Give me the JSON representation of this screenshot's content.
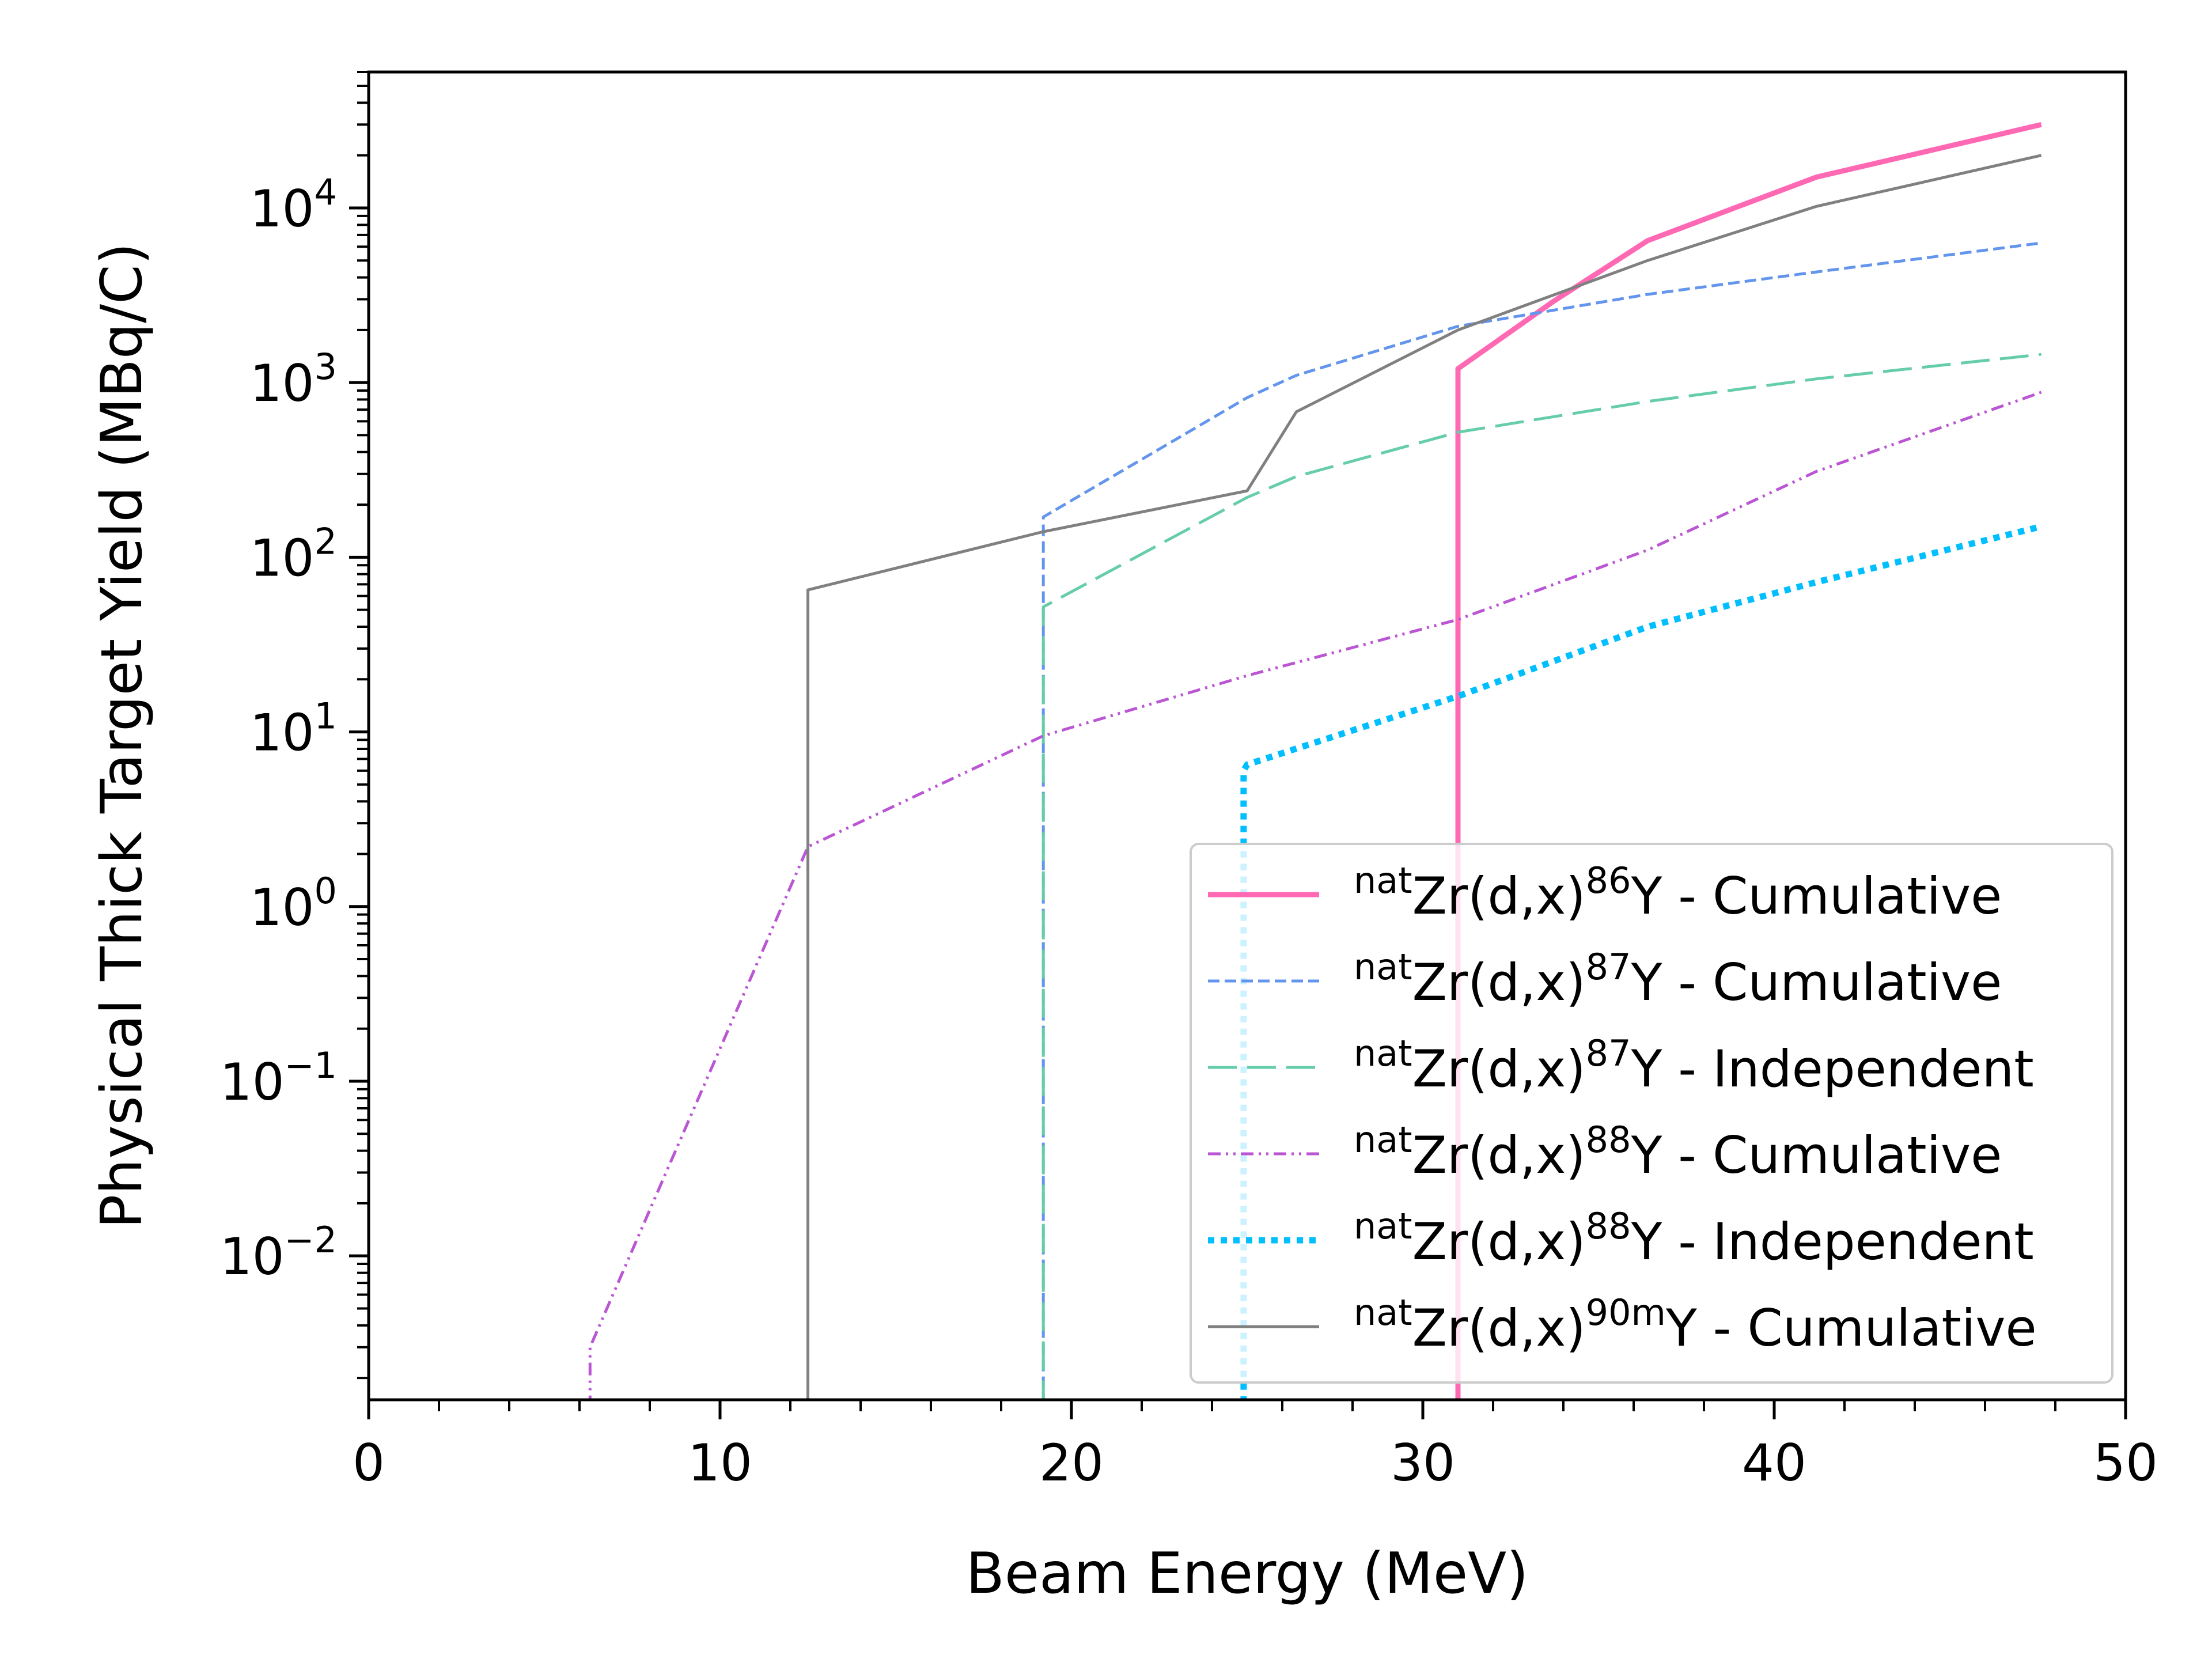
{
  "chart_data": {
    "type": "line",
    "xlabel": "Beam Energy (MeV)",
    "ylabel": "Physical Thick Target Yield (MBq/C)",
    "xlim": [
      0,
      50
    ],
    "xscale": "linear",
    "yscale": "log",
    "ylim": [
      0.0015,
      60000
    ],
    "x_ticks": [
      0,
      10,
      20,
      30,
      40,
      50
    ],
    "x_tick_labels": [
      "0",
      "10",
      "20",
      "30",
      "40",
      "50"
    ],
    "y_ticks": [
      0.01,
      0.1,
      1,
      10,
      100,
      1000,
      10000
    ],
    "y_tick_labels": [
      {
        "base": "10",
        "exp": "−2"
      },
      {
        "base": "10",
        "exp": "−1"
      },
      {
        "base": "10",
        "exp": "0"
      },
      {
        "base": "10",
        "exp": "1"
      },
      {
        "base": "10",
        "exp": "2"
      },
      {
        "base": "10",
        "exp": "3"
      },
      {
        "base": "10",
        "exp": "4"
      }
    ],
    "grid": false,
    "legend_position": "lower-right",
    "series": [
      {
        "name": {
          "pre": "nat",
          "mid": "Zr(d,x)",
          "iso": "86",
          "post": "Y - Cumulative"
        },
        "color": "#ff69b4",
        "style": "solid",
        "width": 9,
        "x": [
          31.0,
          31.0,
          31.0,
          33.7,
          36.4,
          41.2,
          47.6
        ],
        "y": [
          0.0001,
          1.0,
          1200,
          2900,
          6500,
          15000,
          30000
        ]
      },
      {
        "name": {
          "pre": "nat",
          "mid": "Zr(d,x)",
          "iso": "87",
          "post": "Y - Cumulative"
        },
        "color": "#6495ed",
        "style": "dashed",
        "width": 5,
        "x": [
          19.2,
          19.2,
          25.0,
          26.4,
          31.0,
          36.4,
          41.2,
          47.6
        ],
        "y": [
          0.0001,
          170,
          820,
          1100,
          2100,
          3200,
          4300,
          6300
        ]
      },
      {
        "name": {
          "pre": "nat",
          "mid": "Zr(d,x)",
          "iso": "87",
          "post": "Y - Independent"
        },
        "color": "#66cdaa",
        "style": "longdash",
        "width": 5,
        "x": [
          19.2,
          19.2,
          25.0,
          26.4,
          31.0,
          36.4,
          41.2,
          47.6
        ],
        "y": [
          0.0001,
          52,
          220,
          290,
          520,
          780,
          1050,
          1450
        ]
      },
      {
        "name": {
          "pre": "nat",
          "mid": "Zr(d,x)",
          "iso": "88",
          "post": "Y - Cumulative"
        },
        "color": "#ba55d3",
        "style": "dashdotdot",
        "width": 5,
        "x": [
          6.3,
          6.3,
          12.5,
          19.2,
          25.0,
          31.0,
          36.4,
          41.2,
          47.6
        ],
        "y": [
          0.0001,
          0.003,
          2.2,
          9.5,
          21,
          44,
          110,
          310,
          880
        ]
      },
      {
        "name": {
          "pre": "nat",
          "mid": "Zr(d,x)",
          "iso": "88",
          "post": "Y - Independent"
        },
        "color": "#00bfff",
        "style": "dotted",
        "width": 11,
        "x": [
          24.9,
          24.9,
          25.0,
          31.0,
          36.4,
          41.2,
          47.6
        ],
        "y": [
          0.0001,
          6.0,
          6.5,
          16,
          40,
          72,
          150
        ]
      },
      {
        "name": {
          "pre": "nat",
          "mid": "Zr(d,x)",
          "iso": "90m",
          "post": "Y - Cumulative"
        },
        "color": "#808080",
        "style": "solid",
        "width": 5,
        "x": [
          12.5,
          12.5,
          19.2,
          25.0,
          26.4,
          31.0,
          36.4,
          41.2,
          47.6
        ],
        "y": [
          0.0001,
          65,
          140,
          240,
          680,
          2000,
          5000,
          10200,
          20000
        ]
      }
    ]
  }
}
